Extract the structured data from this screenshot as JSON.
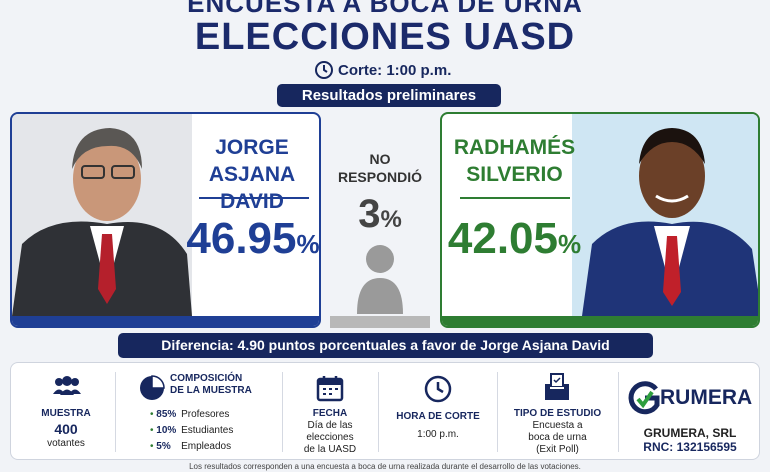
{
  "header": {
    "kicker": "ENCUESTA A BOCA DE URNA",
    "title": "ELECCIONES UASD",
    "cutoff": "Corte: 1:00 p.m.",
    "badge": "Resultados preliminares"
  },
  "candidates": [
    {
      "name_lines": [
        "JORGE",
        "ASJANA DAVID"
      ],
      "percent": {
        "number": "46.95",
        "unit": "%"
      }
    },
    {
      "name_lines": [
        "RADHAMÉS",
        "SILVERIO"
      ],
      "percent": {
        "number": "42.05",
        "unit": "%"
      }
    }
  ],
  "no_response": {
    "label_lines": [
      "NO",
      "RESPONDIÓ"
    ],
    "percent": {
      "number": "3",
      "unit": "%"
    }
  },
  "difference": "Diferencia: 4.90 puntos porcentuales a favor de Jorge Asjana David",
  "details": {
    "sample": {
      "label": "MUESTRA",
      "value": "400",
      "unit": "votantes"
    },
    "composition": {
      "title_lines": [
        "COMPOSICIÓN",
        "DE LA MUESTRA"
      ],
      "items": [
        {
          "percent": "85%",
          "group": "Profesores"
        },
        {
          "percent": "10%",
          "group": "Estudiantes"
        },
        {
          "percent": "5%",
          "group": "Empleados"
        }
      ]
    },
    "date": {
      "label": "FECHA",
      "lines": [
        "Día de las",
        "elecciones",
        "de la UASD"
      ]
    },
    "cutoff": {
      "label": "HORA DE CORTE",
      "value": "1:00 p.m."
    },
    "study": {
      "label": "TIPO DE ESTUDIO",
      "lines": [
        "Encuesta a",
        "boca de urna",
        "(Exit Poll)"
      ]
    },
    "company": {
      "logo": "RUMERA",
      "name": "GRUMERA, SRL",
      "rnc": "RNC: 132156595"
    }
  },
  "footer": "Los resultados corresponden a una encuesta a boca de urna realizada durante el desarrollo de las votaciones."
}
